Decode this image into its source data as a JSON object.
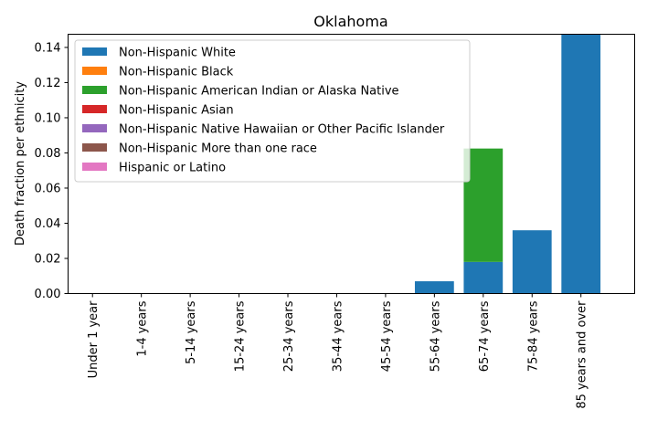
{
  "chart_data": {
    "type": "bar",
    "stacked": true,
    "title": "Oklahoma",
    "xlabel": "",
    "ylabel": "Death fraction per ethnicity",
    "ylim": [
      0,
      0.1475
    ],
    "yticks": [
      0.0,
      0.02,
      0.04,
      0.06,
      0.08,
      0.1,
      0.12,
      0.14
    ],
    "ytick_labels": [
      "0.00",
      "0.02",
      "0.04",
      "0.06",
      "0.08",
      "0.10",
      "0.12",
      "0.14"
    ],
    "grid": false,
    "legend_position": "upper-left",
    "categories": [
      "Under 1 year",
      "1-4 years",
      "5-14 years",
      "15-24 years",
      "25-34 years",
      "35-44 years",
      "45-54 years",
      "55-64 years",
      "65-74 years",
      "75-84 years",
      "85 years and over"
    ],
    "series": [
      {
        "name": "Non-Hispanic White",
        "color": "#1f77b4",
        "values": [
          0,
          0,
          0,
          0,
          0,
          0,
          0,
          0.007,
          0.018,
          0.036,
          0.148
        ]
      },
      {
        "name": "Non-Hispanic Black",
        "color": "#ff7f0e",
        "values": [
          0,
          0,
          0,
          0,
          0,
          0,
          0,
          0,
          0,
          0,
          0
        ]
      },
      {
        "name": "Non-Hispanic American Indian or Alaska Native",
        "color": "#2ca02c",
        "values": [
          0,
          0,
          0,
          0,
          0,
          0,
          0,
          0,
          0.0645,
          0,
          0
        ]
      },
      {
        "name": "Non-Hispanic Asian",
        "color": "#d62728",
        "values": [
          0,
          0,
          0,
          0,
          0,
          0,
          0,
          0,
          0,
          0,
          0
        ]
      },
      {
        "name": "Non-Hispanic Native Hawaiian or Other Pacific Islander",
        "color": "#9467bd",
        "values": [
          0,
          0,
          0,
          0,
          0,
          0,
          0,
          0,
          0,
          0,
          0
        ]
      },
      {
        "name": "Non-Hispanic More than one race",
        "color": "#8c564b",
        "values": [
          0,
          0,
          0,
          0,
          0,
          0,
          0,
          0,
          0,
          0,
          0
        ]
      },
      {
        "name": "Hispanic or Latino",
        "color": "#e377c2",
        "values": [
          0,
          0,
          0,
          0,
          0,
          0,
          0,
          0,
          0,
          0,
          0
        ]
      }
    ]
  }
}
